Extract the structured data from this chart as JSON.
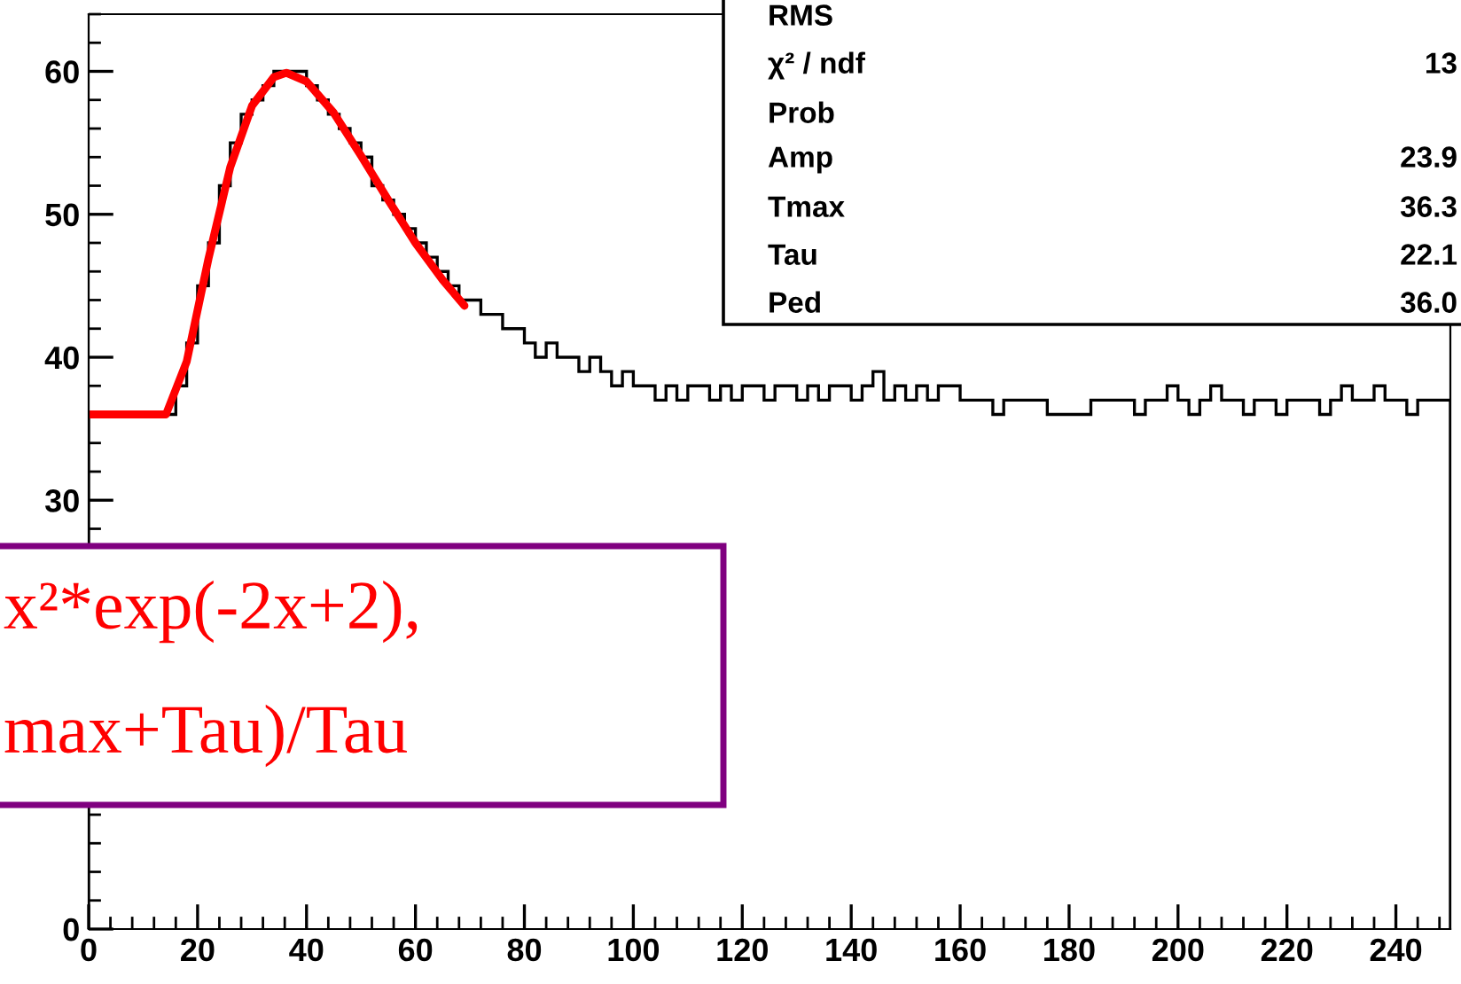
{
  "chart_data": {
    "type": "histogram",
    "bins": [
      0,
      2,
      4,
      6,
      8,
      10,
      12,
      14,
      16,
      18,
      20,
      22,
      24,
      26,
      28,
      30,
      32,
      34,
      36,
      38,
      40,
      42,
      44,
      46,
      48,
      50,
      52,
      54,
      56,
      58,
      60,
      62,
      64,
      66,
      68,
      70,
      72,
      74,
      76,
      78,
      80,
      82,
      84,
      86,
      88,
      90,
      92,
      94,
      96,
      98,
      100,
      102,
      104,
      106,
      108,
      110,
      112,
      114,
      116,
      118,
      120,
      122,
      124,
      126,
      128,
      130,
      132,
      134,
      136,
      138,
      140,
      142,
      144,
      146,
      148,
      150,
      152,
      154,
      156,
      158,
      160,
      162,
      164,
      166,
      168,
      170,
      172,
      174,
      176,
      178,
      180,
      182,
      184,
      186,
      188,
      190,
      192,
      194,
      196,
      198,
      200,
      202,
      204,
      206,
      208,
      210,
      212,
      214,
      216,
      218,
      220,
      222,
      224,
      226,
      228,
      230,
      232,
      234,
      236,
      238,
      240,
      242,
      244,
      246,
      248,
      250
    ],
    "values": [
      36,
      36,
      36,
      36,
      36,
      36,
      36,
      36,
      38,
      41,
      45,
      48,
      52,
      55,
      57,
      58,
      59,
      60,
      60,
      60,
      59,
      58,
      57,
      56,
      55,
      54,
      52,
      51,
      50,
      49,
      48,
      47,
      46,
      45,
      44,
      44,
      43,
      43,
      42,
      42,
      41,
      40,
      41,
      40,
      40,
      39,
      40,
      39,
      38,
      39,
      38,
      38,
      37,
      38,
      37,
      38,
      38,
      37,
      38,
      37,
      38,
      38,
      37,
      38,
      38,
      37,
      38,
      37,
      38,
      38,
      37,
      38,
      39,
      37,
      38,
      37,
      38,
      37,
      38,
      38,
      37,
      37,
      37,
      36,
      37,
      37,
      37,
      37,
      36,
      36,
      36,
      36,
      37,
      37,
      37,
      37,
      36,
      37,
      37,
      38,
      37,
      36,
      37,
      38,
      37,
      37,
      36,
      37,
      37,
      36,
      37,
      37,
      37,
      36,
      37,
      38,
      37,
      37,
      38,
      37,
      37,
      36,
      37,
      37,
      37
    ],
    "color": "#000000",
    "series": [
      {
        "type": "line",
        "color": "#ff0000",
        "x": [
          0,
          14.2,
          18,
          22,
          26,
          30,
          34,
          36.3,
          40,
          45,
          50,
          55,
          60,
          65,
          69
        ],
        "values": [
          36,
          36,
          39.7,
          46.9,
          53.3,
          57.6,
          59.6,
          59.9,
          59.3,
          57.1,
          54.1,
          51.0,
          48.0,
          45.4,
          43.6
        ]
      }
    ],
    "xlim": [
      0,
      250
    ],
    "xticks": [
      0,
      20,
      40,
      60,
      80,
      100,
      120,
      140,
      160,
      180,
      200,
      220,
      240
    ],
    "ylim": [
      0,
      64
    ],
    "yticks": [
      0,
      30,
      40,
      50,
      60
    ],
    "grid": false,
    "legend": false,
    "annotations": [
      "RMS",
      "χ² / ndf",
      "Prob",
      "Amp",
      "Tmax",
      "Tau",
      "Ped",
      "13",
      "23.9",
      "36.3",
      "22.1",
      "36.0",
      "x²*exp(-2x+2),",
      "max+Tau)/Tau"
    ]
  }
}
